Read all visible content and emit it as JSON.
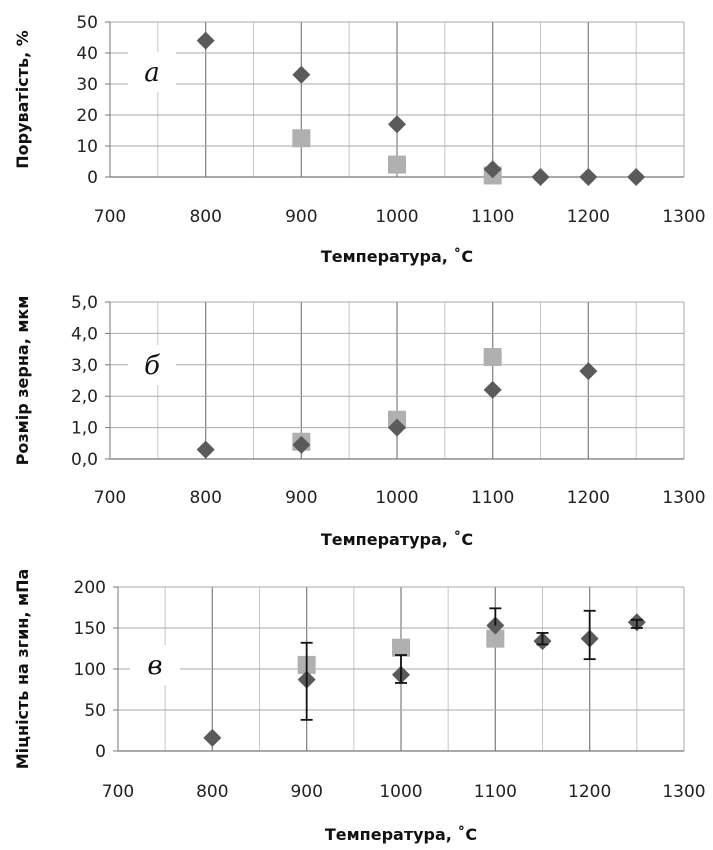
{
  "chart_data": [
    {
      "type": "scatter",
      "panel": "а",
      "xlabel": "Температура, ˚С",
      "ylabel": "Поруватість, %",
      "xlim": [
        700,
        1300
      ],
      "ylim": [
        0,
        50
      ],
      "xticks": [
        "700",
        "800",
        "900",
        "1000",
        "1100",
        "1200",
        "1300"
      ],
      "yticks": [
        "0",
        "10",
        "20",
        "30",
        "40",
        "50"
      ],
      "grid": true,
      "series": [
        {
          "marker": "diamond",
          "color": "#5a5a5a",
          "x": [
            800,
            900,
            1000,
            1100,
            1150,
            1200,
            1250
          ],
          "y": [
            44,
            33,
            17,
            2.5,
            0,
            0,
            0
          ]
        },
        {
          "marker": "square",
          "color": "#b0b0b0",
          "x": [
            900,
            1000,
            1100
          ],
          "y": [
            12.5,
            4,
            0.5
          ]
        }
      ]
    },
    {
      "type": "scatter",
      "panel": "б",
      "xlabel": "Температура, ˚С",
      "ylabel": "Розмір зерна, мкм",
      "xlim": [
        700,
        1300
      ],
      "ylim": [
        0,
        5
      ],
      "xticks": [
        "700",
        "800",
        "900",
        "1000",
        "1100",
        "1200",
        "1300"
      ],
      "yticks": [
        "0,0",
        "1,0",
        "2,0",
        "3,0",
        "4,0",
        "5,0"
      ],
      "grid": true,
      "series": [
        {
          "marker": "diamond",
          "color": "#5a5a5a",
          "x": [
            800,
            900,
            1000,
            1100,
            1200
          ],
          "y": [
            0.3,
            0.45,
            1.0,
            2.2,
            2.8
          ]
        },
        {
          "marker": "square",
          "color": "#b0b0b0",
          "x": [
            900,
            1000,
            1100
          ],
          "y": [
            0.55,
            1.25,
            3.25
          ]
        }
      ]
    },
    {
      "type": "scatter",
      "panel": "в",
      "xlabel": "Температура, ˚С",
      "ylabel": "Міцність на згин, мПа",
      "xlim": [
        700,
        1300
      ],
      "ylim": [
        0,
        200
      ],
      "xticks": [
        "700",
        "800",
        "900",
        "1000",
        "1100",
        "1200",
        "1300"
      ],
      "yticks": [
        "0",
        "50",
        "100",
        "150",
        "200"
      ],
      "grid": true,
      "series": [
        {
          "marker": "diamond",
          "color": "#5a5a5a",
          "x": [
            800,
            900,
            1000,
            1100,
            1150,
            1200,
            1250
          ],
          "y": [
            16,
            87,
            93,
            153,
            134,
            137,
            157
          ],
          "err_low": [
            null,
            38,
            83,
            null,
            130,
            112,
            150
          ],
          "err_high": [
            null,
            132,
            117,
            174,
            144,
            171,
            160
          ]
        },
        {
          "marker": "square",
          "color": "#b0b0b0",
          "x": [
            900,
            1000,
            1100
          ],
          "y": [
            105,
            126,
            137
          ]
        }
      ]
    }
  ]
}
